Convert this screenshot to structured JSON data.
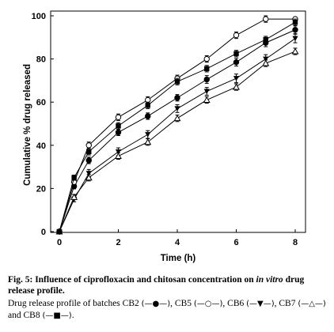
{
  "chart_data": {
    "type": "line",
    "title": "",
    "xlabel": "Time (h)",
    "ylabel": "Cumulative % drug released",
    "xlim": [
      0,
      8.6
    ],
    "ylim": [
      0,
      103
    ],
    "xticks": [
      0,
      2,
      4,
      6,
      8
    ],
    "yticks": [
      0,
      20,
      40,
      60,
      80,
      100
    ],
    "grid": false,
    "legend": "none",
    "x": [
      0,
      0.5,
      1,
      2,
      3,
      4,
      5,
      6,
      7,
      8
    ],
    "series": [
      {
        "name": "CB2",
        "marker": "filled-circle",
        "values": [
          0,
          21,
          33,
          46,
          53.5,
          62,
          70.5,
          78.5,
          87.5,
          93.5
        ],
        "errors": [
          0,
          1.2,
          1.5,
          1.5,
          1.5,
          1.5,
          1.8,
          1.8,
          1.8,
          1.8
        ]
      },
      {
        "name": "CB5",
        "marker": "open-circle",
        "values": [
          0,
          23,
          40,
          53,
          61,
          71,
          80,
          91,
          98.5,
          98.5
        ],
        "errors": [
          0,
          1.2,
          1.5,
          1.5,
          1.5,
          1.5,
          1.5,
          1.5,
          1.5,
          0
        ]
      },
      {
        "name": "CB6",
        "marker": "filled-triangle-down",
        "values": [
          0,
          15,
          27,
          37,
          45,
          57,
          65,
          71,
          80,
          89.5
        ],
        "errors": [
          0,
          1.2,
          1.8,
          1.8,
          1.8,
          1.8,
          1.8,
          2,
          2,
          2
        ]
      },
      {
        "name": "CB7",
        "marker": "open-triangle-up",
        "values": [
          0,
          16,
          25,
          35,
          41.5,
          52.5,
          61,
          67,
          78,
          83.5
        ],
        "errors": [
          0,
          1.2,
          1.5,
          1.5,
          1.5,
          1.5,
          1.5,
          1.5,
          1.5,
          1.5
        ]
      },
      {
        "name": "CB8",
        "marker": "filled-square",
        "values": [
          0,
          25,
          37,
          49,
          58.5,
          69.5,
          75.5,
          82.5,
          89,
          97
        ],
        "errors": [
          0,
          1.2,
          1.5,
          1.5,
          1.5,
          1.5,
          1.5,
          1.5,
          1.5,
          1.5
        ]
      }
    ]
  },
  "caption": {
    "fig_label": "Fig. 5:",
    "fig_text_1": " Influence of ciprofloxacin and chitosan concentration on ",
    "fig_ital_1": "in vitro",
    "fig_text_2": " drug release profile.",
    "profile_text": "Drug release profile of batches ",
    "items": [
      {
        "name": "CB2",
        "symbol": "(—●—)",
        "sep": ", "
      },
      {
        "name": "CB5",
        "symbol": "(—○—)",
        "sep": ", "
      },
      {
        "name": "CB6",
        "symbol": "(—▼—)",
        "sep": ", "
      },
      {
        "name": "CB7",
        "symbol": "(—△—)",
        "sep": " and "
      },
      {
        "name": "CB8",
        "symbol": "(—■—)",
        "sep": "."
      }
    ]
  }
}
